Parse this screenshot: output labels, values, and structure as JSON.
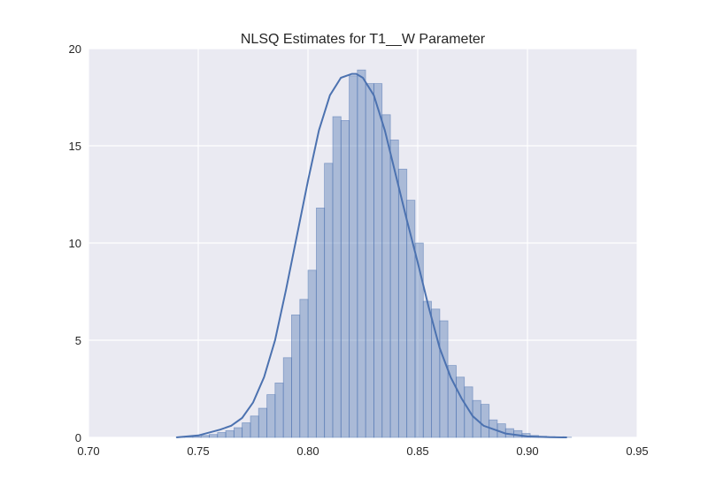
{
  "chart_data": {
    "type": "bar",
    "title": "NLSQ Estimates for T1__W Parameter",
    "xlabel": "",
    "ylabel": "",
    "xlim": [
      0.7,
      0.95
    ],
    "ylim": [
      0,
      20
    ],
    "xticks": [
      "0.70",
      "0.75",
      "0.80",
      "0.85",
      "0.90",
      "0.95"
    ],
    "yticks": [
      "0",
      "5",
      "10",
      "15",
      "20"
    ],
    "grid": true,
    "colors": {
      "bars": "#4c72b0",
      "kde": "#4c72b0",
      "background": "#eaeaf2",
      "grid": "#ffffff"
    },
    "histogram": {
      "bin_width": 0.00375,
      "bins_start": [
        0.74,
        0.7438,
        0.7475,
        0.7513,
        0.755,
        0.7588,
        0.7625,
        0.7663,
        0.77,
        0.7738,
        0.7775,
        0.7813,
        0.785,
        0.7888,
        0.7925,
        0.7963,
        0.8,
        0.8038,
        0.8075,
        0.8113,
        0.815,
        0.8188,
        0.8225,
        0.8263,
        0.83,
        0.8338,
        0.8375,
        0.8413,
        0.845,
        0.8488,
        0.8525,
        0.8563,
        0.86,
        0.8638,
        0.8675,
        0.8713,
        0.875,
        0.8788,
        0.8825,
        0.8863,
        0.89,
        0.8938,
        0.8975,
        0.9013,
        0.905,
        0.9088,
        0.9125,
        0.9163
      ],
      "density": [
        0.02,
        0.03,
        0.05,
        0.1,
        0.15,
        0.25,
        0.35,
        0.5,
        0.75,
        1.1,
        1.5,
        2.2,
        2.8,
        4.1,
        6.3,
        7.1,
        8.6,
        11.8,
        14.1,
        16.5,
        16.3,
        18.6,
        18.9,
        18.2,
        18.2,
        16.6,
        15.3,
        13.8,
        12.2,
        10.0,
        7.0,
        6.6,
        6.0,
        3.7,
        3.1,
        2.6,
        1.9,
        1.7,
        0.9,
        0.7,
        0.45,
        0.35,
        0.2,
        0.1,
        0.06,
        0.04,
        0.02,
        0.01
      ]
    },
    "kde": {
      "x": [
        0.74,
        0.75,
        0.76,
        0.765,
        0.77,
        0.775,
        0.78,
        0.785,
        0.79,
        0.795,
        0.8,
        0.805,
        0.81,
        0.815,
        0.82,
        0.822,
        0.825,
        0.83,
        0.835,
        0.84,
        0.845,
        0.85,
        0.855,
        0.86,
        0.865,
        0.87,
        0.875,
        0.88,
        0.89,
        0.9,
        0.91,
        0.918
      ],
      "y": [
        0.0,
        0.1,
        0.4,
        0.6,
        1.0,
        1.8,
        3.1,
        5.0,
        7.6,
        10.4,
        13.2,
        15.8,
        17.6,
        18.5,
        18.7,
        18.7,
        18.5,
        17.6,
        15.8,
        13.5,
        11.2,
        9.0,
        6.7,
        4.6,
        3.1,
        2.0,
        1.1,
        0.6,
        0.2,
        0.05,
        0.01,
        0.0
      ]
    }
  }
}
